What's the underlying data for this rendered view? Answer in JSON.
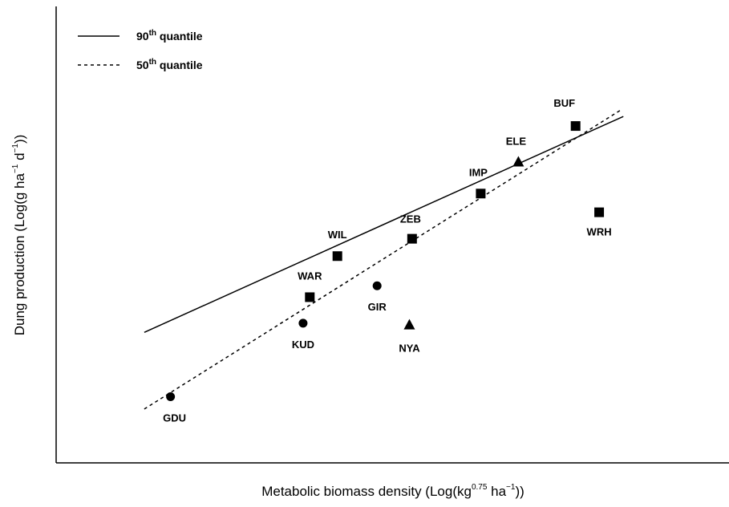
{
  "chart_data": {
    "type": "scatter",
    "xlabel": {
      "before": "Metabolic biomass density (Log(kg",
      "sup1": "0.75",
      "mid": " ha",
      "sup2": "−1",
      "after": "))"
    },
    "ylabel": {
      "before": "Dung production (Log(g ha",
      "sup1": "−1",
      "mid": " d",
      "sup2": "−1",
      "after": "))"
    },
    "legend": {
      "position": "top-left",
      "items": [
        {
          "num": "90",
          "sup": "th",
          "text": " quantile",
          "style": "solid"
        },
        {
          "num": "50",
          "sup": "th",
          "text": " quantile",
          "style": "dashed"
        }
      ]
    },
    "xlim": [
      0,
      100
    ],
    "ylim": [
      0,
      100
    ],
    "ticks_shown": false,
    "points": [
      {
        "label": "GDU",
        "x": 17.0,
        "y": 14.5,
        "shape": "circle"
      },
      {
        "label": "KUD",
        "x": 36.7,
        "y": 30.6,
        "shape": "circle"
      },
      {
        "label": "WAR",
        "x": 37.7,
        "y": 36.3,
        "shape": "square"
      },
      {
        "label": "WIL",
        "x": 41.8,
        "y": 45.3,
        "shape": "square"
      },
      {
        "label": "GIR",
        "x": 47.7,
        "y": 38.8,
        "shape": "circle"
      },
      {
        "label": "NYA",
        "x": 52.5,
        "y": 30.3,
        "shape": "triangle"
      },
      {
        "label": "ZEB",
        "x": 52.9,
        "y": 49.1,
        "shape": "square"
      },
      {
        "label": "IMP",
        "x": 63.1,
        "y": 59.0,
        "shape": "square"
      },
      {
        "label": "ELE",
        "x": 68.7,
        "y": 66.0,
        "shape": "triangle"
      },
      {
        "label": "BUF",
        "x": 77.2,
        "y": 73.8,
        "shape": "square"
      },
      {
        "label": "WRH",
        "x": 80.7,
        "y": 54.9,
        "shape": "square"
      }
    ],
    "lines": [
      {
        "name": "90th quantile",
        "style": "solid",
        "x": [
          13.1,
          84.3
        ],
        "y": [
          28.6,
          75.9
        ]
      },
      {
        "name": "50th quantile",
        "style": "dashed",
        "x": [
          13.1,
          83.8
        ],
        "y": [
          11.8,
          77.2
        ]
      }
    ]
  }
}
